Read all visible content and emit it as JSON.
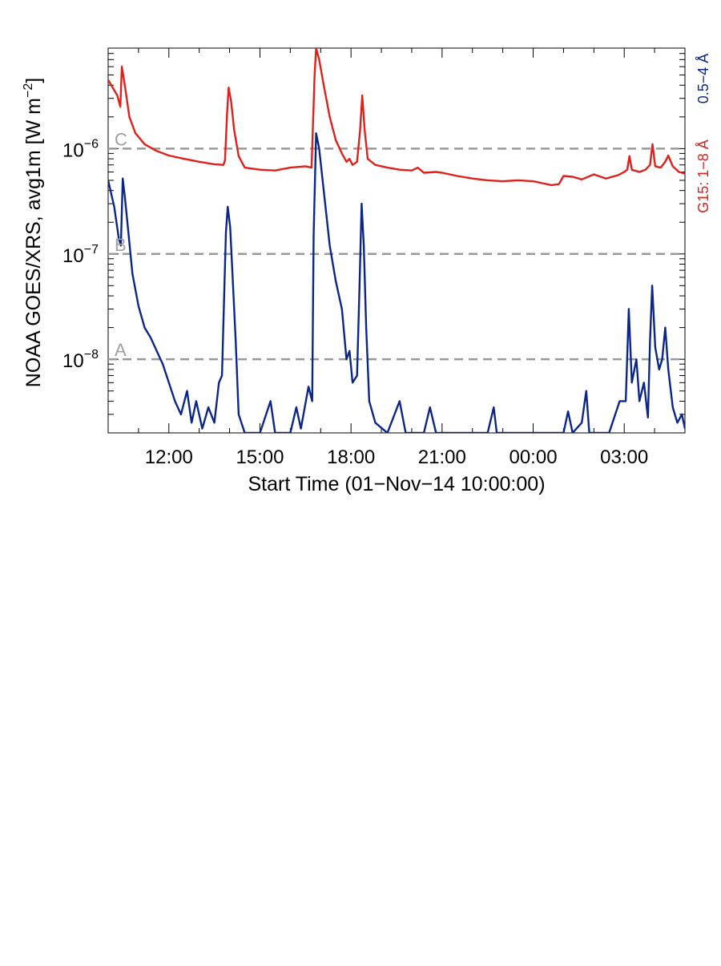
{
  "chart_data": {
    "type": "line",
    "title": "",
    "xlabel": "Start Time (01−Nov−14 10:00:00)",
    "ylabel_text": "NOAA GOES/XRS, avg1m [W m",
    "ylabel_exp": "−2",
    "ylabel_close": "]",
    "y_scale": "log",
    "ylim": [
      2e-09,
      9e-06
    ],
    "x_range_hours": [
      10.0,
      29.0
    ],
    "x_ticks": [
      {
        "hour": 12,
        "label": "12:00"
      },
      {
        "hour": 15,
        "label": "15:00"
      },
      {
        "hour": 18,
        "label": "18:00"
      },
      {
        "hour": 21,
        "label": "21:00"
      },
      {
        "hour": 24,
        "label": "00:00"
      },
      {
        "hour": 27,
        "label": "03:00"
      }
    ],
    "y_ticks": [
      {
        "value": 1e-08,
        "base": "10",
        "exp": "−8"
      },
      {
        "value": 1e-07,
        "base": "10",
        "exp": "−7"
      },
      {
        "value": 1e-06,
        "base": "10",
        "exp": "−6"
      }
    ],
    "flare_levels": [
      {
        "value": 1e-08,
        "label": "A"
      },
      {
        "value": 1e-07,
        "label": "B"
      },
      {
        "value": 1e-06,
        "label": "C"
      }
    ],
    "legend": {
      "placement": "right-vertical"
    },
    "series": [
      {
        "name": "G15: 1−8 Å",
        "color": "#e0201b",
        "points": [
          [
            10.0,
            4.5e-06
          ],
          [
            10.3,
            3.2e-06
          ],
          [
            10.4,
            2.5e-06
          ],
          [
            10.45,
            6e-06
          ],
          [
            10.55,
            4e-06
          ],
          [
            10.7,
            2e-06
          ],
          [
            10.9,
            1.4e-06
          ],
          [
            11.2,
            1.1e-06
          ],
          [
            11.6,
            9.5e-07
          ],
          [
            12.0,
            8.6e-07
          ],
          [
            12.5,
            8e-07
          ],
          [
            13.0,
            7.5e-07
          ],
          [
            13.5,
            7.1e-07
          ],
          [
            13.8,
            7e-07
          ],
          [
            13.85,
            7.8e-07
          ],
          [
            13.92,
            2.2e-06
          ],
          [
            13.97,
            3.8e-06
          ],
          [
            14.05,
            2.8e-06
          ],
          [
            14.15,
            1.5e-06
          ],
          [
            14.3,
            8.5e-07
          ],
          [
            14.5,
            6.6e-07
          ],
          [
            15.0,
            6.3e-07
          ],
          [
            15.5,
            6.2e-07
          ],
          [
            16.0,
            6.6e-07
          ],
          [
            16.5,
            6.8e-07
          ],
          [
            16.7,
            6.6e-07
          ],
          [
            16.75,
            1.8e-06
          ],
          [
            16.8,
            5e-06
          ],
          [
            16.85,
            9e-06
          ],
          [
            16.95,
            7e-06
          ],
          [
            17.1,
            4e-06
          ],
          [
            17.3,
            2e-06
          ],
          [
            17.5,
            1.2e-06
          ],
          [
            17.7,
            9e-07
          ],
          [
            17.85,
            7.5e-07
          ],
          [
            17.95,
            8e-07
          ],
          [
            18.05,
            7e-07
          ],
          [
            18.2,
            7.5e-07
          ],
          [
            18.3,
            1.5e-06
          ],
          [
            18.37,
            3.2e-06
          ],
          [
            18.45,
            1.5e-06
          ],
          [
            18.55,
            8e-07
          ],
          [
            18.8,
            7e-07
          ],
          [
            19.2,
            6.6e-07
          ],
          [
            19.6,
            6.3e-07
          ],
          [
            20.0,
            6.2e-07
          ],
          [
            20.2,
            6.6e-07
          ],
          [
            20.4,
            5.9e-07
          ],
          [
            20.8,
            6e-07
          ],
          [
            21.0,
            5.9e-07
          ],
          [
            21.5,
            5.5e-07
          ],
          [
            22.0,
            5.2e-07
          ],
          [
            22.5,
            5e-07
          ],
          [
            23.0,
            4.9e-07
          ],
          [
            23.5,
            5e-07
          ],
          [
            24.0,
            4.9e-07
          ],
          [
            24.3,
            4.7e-07
          ],
          [
            24.6,
            4.5e-07
          ],
          [
            24.85,
            4.6e-07
          ],
          [
            25.0,
            5.5e-07
          ],
          [
            25.3,
            5.4e-07
          ],
          [
            25.6,
            5.1e-07
          ],
          [
            26.0,
            5.7e-07
          ],
          [
            26.4,
            5.2e-07
          ],
          [
            26.8,
            5.6e-07
          ],
          [
            27.0,
            6e-07
          ],
          [
            27.1,
            6.3e-07
          ],
          [
            27.17,
            8.5e-07
          ],
          [
            27.25,
            6.3e-07
          ],
          [
            27.5,
            6e-07
          ],
          [
            27.7,
            6.3e-07
          ],
          [
            27.85,
            7e-07
          ],
          [
            27.93,
            1.1e-06
          ],
          [
            28.02,
            6.8e-07
          ],
          [
            28.2,
            6.6e-07
          ],
          [
            28.35,
            7.5e-07
          ],
          [
            28.45,
            8.6e-07
          ],
          [
            28.6,
            6.8e-07
          ],
          [
            28.8,
            6e-07
          ],
          [
            29.0,
            5.8e-07
          ]
        ]
      },
      {
        "name": "0.5−4 Å",
        "color": "#0b2688",
        "points": [
          [
            10.0,
            5e-07
          ],
          [
            10.2,
            2.8e-07
          ],
          [
            10.35,
            1.4e-07
          ],
          [
            10.42,
            1.2e-07
          ],
          [
            10.48,
            5.2e-07
          ],
          [
            10.55,
            3.5e-07
          ],
          [
            10.65,
            1.8e-07
          ],
          [
            10.8,
            6.5e-08
          ],
          [
            11.0,
            3.2e-08
          ],
          [
            11.2,
            2e-08
          ],
          [
            11.4,
            1.6e-08
          ],
          [
            11.6,
            1.2e-08
          ],
          [
            11.8,
            9e-09
          ],
          [
            12.0,
            6e-09
          ],
          [
            12.2,
            4e-09
          ],
          [
            12.4,
            3e-09
          ],
          [
            12.6,
            5e-09
          ],
          [
            12.75,
            2.5e-09
          ],
          [
            12.9,
            4e-09
          ],
          [
            13.1,
            2.2e-09
          ],
          [
            13.3,
            3.5e-09
          ],
          [
            13.5,
            2.5e-09
          ],
          [
            13.65,
            6e-09
          ],
          [
            13.75,
            7e-09
          ],
          [
            13.82,
            4e-08
          ],
          [
            13.88,
            1.6e-07
          ],
          [
            13.94,
            2.8e-07
          ],
          [
            14.02,
            1.8e-07
          ],
          [
            14.1,
            6e-08
          ],
          [
            14.2,
            1.5e-08
          ],
          [
            14.3,
            3e-09
          ],
          [
            14.5,
            2e-09
          ],
          [
            15.0,
            2e-09
          ],
          [
            15.35,
            4e-09
          ],
          [
            15.5,
            2e-09
          ],
          [
            16.0,
            2e-09
          ],
          [
            16.2,
            3.5e-09
          ],
          [
            16.35,
            2.2e-09
          ],
          [
            16.6,
            5.5e-09
          ],
          [
            16.72,
            4e-09
          ],
          [
            16.77,
            1.5e-07
          ],
          [
            16.85,
            1.4e-06
          ],
          [
            16.95,
            1e-06
          ],
          [
            17.1,
            4e-07
          ],
          [
            17.3,
            1.2e-07
          ],
          [
            17.5,
            5.5e-08
          ],
          [
            17.7,
            3e-08
          ],
          [
            17.85,
            1e-08
          ],
          [
            17.95,
            1.2e-08
          ],
          [
            18.05,
            6e-09
          ],
          [
            18.2,
            7e-09
          ],
          [
            18.28,
            5e-08
          ],
          [
            18.35,
            3e-07
          ],
          [
            18.42,
            1.2e-07
          ],
          [
            18.5,
            2e-08
          ],
          [
            18.6,
            4e-09
          ],
          [
            18.8,
            2.5e-09
          ],
          [
            19.2,
            2e-09
          ],
          [
            19.6,
            4e-09
          ],
          [
            19.8,
            2e-09
          ],
          [
            20.4,
            2e-09
          ],
          [
            20.6,
            3.5e-09
          ],
          [
            20.8,
            2e-09
          ],
          [
            21.5,
            2e-09
          ],
          [
            22.0,
            2e-09
          ],
          [
            22.5,
            2e-09
          ],
          [
            22.7,
            3.5e-09
          ],
          [
            22.8,
            2e-09
          ],
          [
            23.5,
            2e-09
          ],
          [
            24.0,
            2e-09
          ],
          [
            24.5,
            2e-09
          ],
          [
            25.0,
            2e-09
          ],
          [
            25.15,
            3.2e-09
          ],
          [
            25.3,
            2e-09
          ],
          [
            25.6,
            2.5e-09
          ],
          [
            25.75,
            5e-09
          ],
          [
            25.85,
            2e-09
          ],
          [
            26.2,
            2e-09
          ],
          [
            26.5,
            2e-09
          ],
          [
            26.85,
            4e-09
          ],
          [
            27.05,
            4e-09
          ],
          [
            27.15,
            3e-08
          ],
          [
            27.25,
            6e-09
          ],
          [
            27.4,
            1e-08
          ],
          [
            27.5,
            4e-09
          ],
          [
            27.65,
            6e-09
          ],
          [
            27.78,
            2.8e-09
          ],
          [
            27.85,
            1.5e-08
          ],
          [
            27.92,
            5e-08
          ],
          [
            28.02,
            1.3e-08
          ],
          [
            28.15,
            8e-09
          ],
          [
            28.25,
            1e-08
          ],
          [
            28.35,
            2e-08
          ],
          [
            28.45,
            8e-09
          ],
          [
            28.6,
            3.5e-09
          ],
          [
            28.75,
            2.5e-09
          ],
          [
            28.9,
            3e-09
          ],
          [
            29.0,
            2.2e-09
          ]
        ]
      }
    ]
  }
}
